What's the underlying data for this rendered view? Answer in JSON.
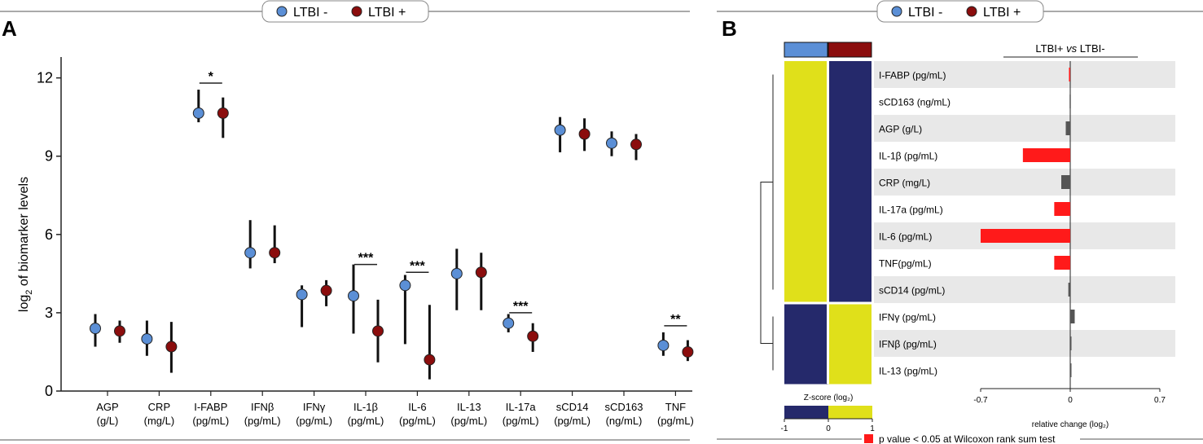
{
  "colors": {
    "ltbi_neg": "#5b8fd6",
    "ltbi_pos": "#8b0d0d",
    "bar_sig": "#ff1a1a",
    "bar_ns": "#555555",
    "heat_low": "#25296b",
    "heat_high": "#e0e01a",
    "row_shade": "#e8e8e8"
  },
  "legend": {
    "neg_label": "LTBI -",
    "pos_label": "LTBI +"
  },
  "panel_a": {
    "letter": "A"
  },
  "panel_b": {
    "letter": "B",
    "bar_title_prefix": "LTBI+ ",
    "bar_title_italic": "vs",
    "bar_title_suffix": " LTBI-",
    "zscore_label": "Z-score (log₂)",
    "zscore_ticks": [
      "-1",
      "0",
      "1"
    ],
    "sig_note": "p value < 0.05 at Wilcoxon rank sum test"
  },
  "chart_data": [
    {
      "type": "scatter",
      "panel": "A",
      "ylabel": "log₂ of biomarker levels",
      "ylim": [
        0,
        12.8
      ],
      "yticks": [
        0,
        3,
        6,
        9,
        12
      ],
      "categories": [
        {
          "name": "AGP",
          "unit": "(g/L)"
        },
        {
          "name": "CRP",
          "unit": "(mg/L)"
        },
        {
          "name": "I-FABP",
          "unit": "(pg/mL)"
        },
        {
          "name": "IFNβ",
          "unit": "(pg/mL)"
        },
        {
          "name": "IFNγ",
          "unit": "(pg/mL)"
        },
        {
          "name": "IL-1β",
          "unit": "(pg/mL)"
        },
        {
          "name": "IL-6",
          "unit": "(pg/mL)"
        },
        {
          "name": "IL-13",
          "unit": "(pg/mL)"
        },
        {
          "name": "IL-17a",
          "unit": "(pg/mL)"
        },
        {
          "name": "sCD14",
          "unit": "(pg/mL)"
        },
        {
          "name": "sCD163",
          "unit": "(ng/mL)"
        },
        {
          "name": "TNF",
          "unit": "(pg/mL)"
        }
      ],
      "series": [
        {
          "name": "LTBI -",
          "values": [
            2.4,
            2.0,
            10.65,
            5.3,
            3.7,
            3.65,
            4.05,
            4.5,
            2.6,
            10.0,
            9.5,
            1.75
          ],
          "lower": [
            1.7,
            1.35,
            10.3,
            4.7,
            2.45,
            2.2,
            1.8,
            3.1,
            2.25,
            9.15,
            9.0,
            1.35
          ],
          "upper": [
            2.95,
            2.7,
            11.55,
            6.55,
            4.05,
            4.85,
            4.45,
            5.45,
            2.95,
            10.5,
            9.95,
            2.25
          ]
        },
        {
          "name": "LTBI +",
          "values": [
            2.3,
            1.7,
            10.65,
            5.3,
            3.85,
            2.3,
            1.2,
            4.55,
            2.1,
            9.85,
            9.45,
            1.5
          ],
          "lower": [
            1.85,
            0.7,
            9.7,
            4.9,
            3.25,
            1.1,
            0.45,
            3.1,
            1.5,
            9.2,
            8.85,
            1.15
          ],
          "upper": [
            2.7,
            2.65,
            11.25,
            6.35,
            4.25,
            3.5,
            3.3,
            5.3,
            2.6,
            10.45,
            9.85,
            1.95
          ]
        }
      ],
      "significance": [
        {
          "category": "I-FABP",
          "label": "*",
          "y": 11.8
        },
        {
          "category": "IL-1β",
          "label": "***",
          "y": 4.85
        },
        {
          "category": "IL-6",
          "label": "***",
          "y": 4.55
        },
        {
          "category": "IL-17a",
          "label": "***",
          "y": 3.0
        },
        {
          "category": "TNF",
          "label": "**",
          "y": 2.5
        }
      ]
    },
    {
      "type": "heatmap",
      "panel": "B",
      "columns": [
        "LTBI -",
        "LTBI +"
      ],
      "rows": [
        "I-FABP (pg/mL)",
        "sCD163 (ng/mL)",
        "AGP (g/L)",
        "IL-1β (pg/mL)",
        "CRP (mg/L)",
        "IL-17a (pg/mL)",
        "IL-6 (pg/mL)",
        "TNF(pg/mL)",
        "sCD14 (pg/mL)",
        "IFNγ (pg/mL)",
        "IFNβ (pg/mL)",
        "IL-13 (pg/mL)"
      ],
      "values": [
        [
          1,
          -1
        ],
        [
          1,
          -1
        ],
        [
          1,
          -1
        ],
        [
          1,
          -1
        ],
        [
          1,
          -1
        ],
        [
          1,
          -1
        ],
        [
          1,
          -1
        ],
        [
          1,
          -1
        ],
        [
          1,
          -1
        ],
        [
          -1,
          1
        ],
        [
          -1,
          1
        ],
        [
          -1,
          1
        ]
      ],
      "scale": [
        -1,
        1
      ]
    },
    {
      "type": "bar",
      "panel": "B",
      "orientation": "horizontal",
      "title": "LTBI+ vs LTBI-",
      "xlabel": "relative change (log₂)",
      "xlim": [
        -0.7,
        0.7
      ],
      "xticks": [
        "-0.7",
        "0",
        "0.7"
      ],
      "categories": [
        "I-FABP (pg/mL)",
        "sCD163 (ng/mL)",
        "AGP (g/L)",
        "IL-1β (pg/mL)",
        "CRP (mg/L)",
        "IL-17a (pg/mL)",
        "IL-6 (pg/mL)",
        "TNF(pg/mL)",
        "sCD14 (pg/mL)",
        "IFNγ (pg/mL)",
        "IFNβ (pg/mL)",
        "IL-13 (pg/mL)"
      ],
      "values": [
        -0.01,
        -0.005,
        -0.035,
        -0.37,
        -0.07,
        -0.125,
        -0.7,
        -0.125,
        -0.015,
        0.035,
        0.005,
        0.008
      ],
      "significant": [
        true,
        false,
        false,
        true,
        false,
        true,
        true,
        true,
        false,
        false,
        false,
        false
      ]
    }
  ]
}
